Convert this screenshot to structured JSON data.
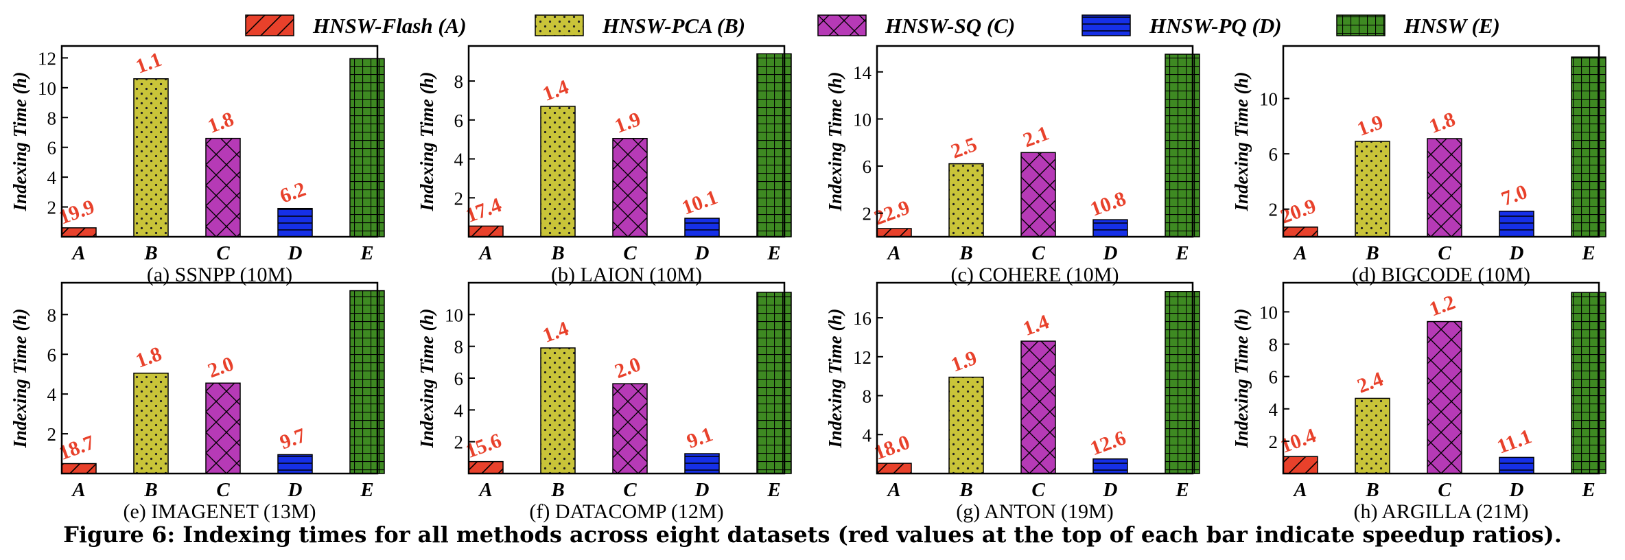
{
  "legend": {
    "position": "top-center",
    "items": [
      {
        "key": "A",
        "label": "HNSW-Flash (A)",
        "color": "#e8412b",
        "pattern": "diagonal"
      },
      {
        "key": "B",
        "label": "HNSW-PCA (B)",
        "color": "#c9c439",
        "pattern": "dots"
      },
      {
        "key": "C",
        "label": "HNSW-SQ (C)",
        "color": "#b63ab6",
        "pattern": "crosshatch"
      },
      {
        "key": "D",
        "label": "HNSW-PQ (D)",
        "color": "#1630e8",
        "pattern": "horizontal"
      },
      {
        "key": "E",
        "label": "HNSW (E)",
        "color": "#3e8a22",
        "pattern": "grid"
      }
    ]
  },
  "caption": "Figure 6: Indexing times for all methods across eight datasets (red values at the top of each bar indicate speedup ratios).",
  "colors": {
    "speedup_label": "#e8412b",
    "axis": "#000000"
  },
  "chart_data": [
    {
      "type": "bar",
      "title": "(a) SSNPP (10M)",
      "xlabel": "",
      "ylabel": "Indexing Time (h)",
      "categories": [
        "A",
        "B",
        "C",
        "D",
        "E"
      ],
      "values": [
        0.6,
        10.6,
        6.6,
        1.9,
        11.95
      ],
      "speedup_labels": [
        "19.9",
        "1.1",
        "1.8",
        "6.2",
        ""
      ],
      "ylim": [
        0,
        12.8
      ],
      "yticks": [
        2,
        4,
        6,
        8,
        10,
        12
      ]
    },
    {
      "type": "bar",
      "title": "(b) LAION (10M)",
      "xlabel": "",
      "ylabel": "Indexing Time (h)",
      "categories": [
        "A",
        "B",
        "C",
        "D",
        "E"
      ],
      "values": [
        0.55,
        6.7,
        5.05,
        0.95,
        9.4
      ],
      "speedup_labels": [
        "17.4",
        "1.4",
        "1.9",
        "10.1",
        ""
      ],
      "ylim": [
        0,
        9.8
      ],
      "yticks": [
        2,
        4,
        6,
        8
      ]
    },
    {
      "type": "bar",
      "title": "(c) COHERE (10M)",
      "xlabel": "",
      "ylabel": "Indexing Time (h)",
      "categories": [
        "A",
        "B",
        "C",
        "D",
        "E"
      ],
      "values": [
        0.7,
        6.2,
        7.15,
        1.45,
        15.5
      ],
      "speedup_labels": [
        "22.9",
        "2.5",
        "2.1",
        "10.8",
        ""
      ],
      "ylim": [
        0,
        16.2
      ],
      "yticks": [
        2,
        6,
        10,
        14
      ]
    },
    {
      "type": "bar",
      "title": "(d) BIGCODE (10M)",
      "xlabel": "",
      "ylabel": "Indexing Time (h)",
      "categories": [
        "A",
        "B",
        "C",
        "D",
        "E"
      ],
      "values": [
        0.7,
        6.9,
        7.1,
        1.85,
        13.0
      ],
      "speedup_labels": [
        "20.9",
        "1.9",
        "1.8",
        "7.0",
        ""
      ],
      "ylim": [
        0,
        13.8
      ],
      "yticks": [
        2,
        6,
        10
      ]
    },
    {
      "type": "bar",
      "title": "(e) IMAGENET (13M)",
      "xlabel": "",
      "ylabel": "Indexing Time (h)",
      "categories": [
        "A",
        "B",
        "C",
        "D",
        "E"
      ],
      "values": [
        0.5,
        5.05,
        4.55,
        0.95,
        9.2
      ],
      "speedup_labels": [
        "18.7",
        "1.8",
        "2.0",
        "9.7",
        ""
      ],
      "ylim": [
        0,
        9.6
      ],
      "yticks": [
        2,
        4,
        6,
        8
      ]
    },
    {
      "type": "bar",
      "title": "(f) DATACOMP (12M)",
      "xlabel": "",
      "ylabel": "Indexing Time (h)",
      "categories": [
        "A",
        "B",
        "C",
        "D",
        "E"
      ],
      "values": [
        0.75,
        7.9,
        5.65,
        1.25,
        11.4
      ],
      "speedup_labels": [
        "15.6",
        "1.4",
        "2.0",
        "9.1",
        ""
      ],
      "ylim": [
        0,
        12
      ],
      "yticks": [
        2,
        4,
        6,
        8,
        10
      ]
    },
    {
      "type": "bar",
      "title": "(g) ANTON (19M)",
      "xlabel": "",
      "ylabel": "Indexing Time (h)",
      "categories": [
        "A",
        "B",
        "C",
        "D",
        "E"
      ],
      "values": [
        1.05,
        9.9,
        13.6,
        1.5,
        18.7
      ],
      "speedup_labels": [
        "18.0",
        "1.9",
        "1.4",
        "12.6",
        ""
      ],
      "ylim": [
        0,
        19.6
      ],
      "yticks": [
        4,
        8,
        12,
        16
      ]
    },
    {
      "type": "bar",
      "title": "(h) ARGILLA (21M)",
      "xlabel": "",
      "ylabel": "Indexing Time (h)",
      "categories": [
        "A",
        "B",
        "C",
        "D",
        "E"
      ],
      "values": [
        1.05,
        4.65,
        9.4,
        1.0,
        11.2
      ],
      "speedup_labels": [
        "10.4",
        "2.4",
        "1.2",
        "11.1",
        ""
      ],
      "ylim": [
        0,
        11.8
      ],
      "yticks": [
        2,
        4,
        6,
        8,
        10
      ]
    }
  ]
}
